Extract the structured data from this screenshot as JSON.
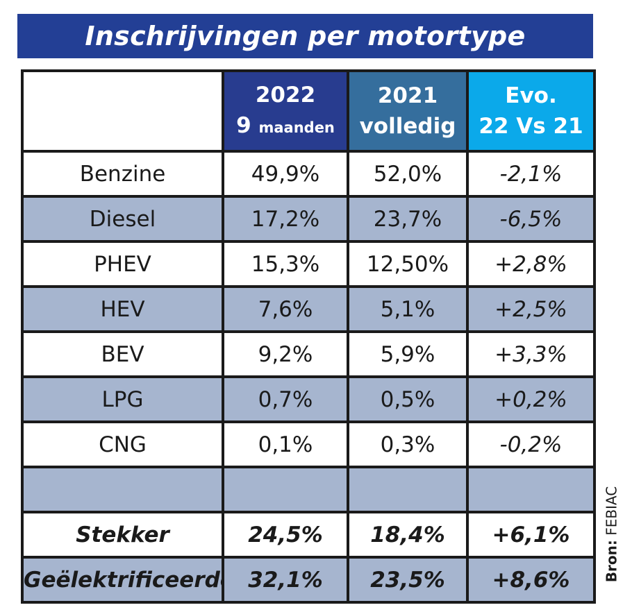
{
  "title": "Inschrijvingen per motortype",
  "source": {
    "label": "Bron:",
    "name": "FEBIAC"
  },
  "chart_data": {
    "type": "table",
    "title": "Inschrijvingen per motortype",
    "columns": [
      {
        "line1": "2022",
        "line2_num": "9",
        "line2_text": "maanden"
      },
      {
        "line1": "2021",
        "line2": "volledig"
      },
      {
        "line1": "Evo.",
        "line2": "22 Vs 21"
      }
    ],
    "rows": [
      {
        "label": "Benzine",
        "v2022": "49,9%",
        "v2021": "52,0%",
        "evo": "-2,1%"
      },
      {
        "label": "Diesel",
        "v2022": "17,2%",
        "v2021": "23,7%",
        "evo": "-6,5%"
      },
      {
        "label": "PHEV",
        "v2022": "15,3%",
        "v2021": "12,50%",
        "evo": "+2,8%"
      },
      {
        "label": "HEV",
        "v2022": "7,6%",
        "v2021": "5,1%",
        "evo": "+2,5%"
      },
      {
        "label": "BEV",
        "v2022": "9,2%",
        "v2021": "5,9%",
        "evo": "+3,3%"
      },
      {
        "label": "LPG",
        "v2022": "0,7%",
        "v2021": "0,5%",
        "evo": "+0,2%"
      },
      {
        "label": "CNG",
        "v2022": "0,1%",
        "v2021": "0,3%",
        "evo": "-0,2%"
      },
      {
        "label": "",
        "v2022": "",
        "v2021": "",
        "evo": ""
      },
      {
        "label": "Stekker",
        "v2022": "24,5%",
        "v2021": "18,4%",
        "evo": "+6,1%"
      },
      {
        "label": "Geëlektrificeerde",
        "v2022": "32,1%",
        "v2021": "23,5%",
        "evo": "+8,6%"
      }
    ],
    "values_2022": [
      49.9,
      17.2,
      15.3,
      7.6,
      9.2,
      0.7,
      0.1,
      null,
      24.5,
      32.1
    ],
    "values_2021": [
      52.0,
      23.7,
      12.5,
      5.1,
      5.9,
      0.5,
      0.3,
      null,
      18.4,
      23.5
    ],
    "values_evo": [
      -2.1,
      -6.5,
      2.8,
      2.5,
      3.3,
      0.2,
      -0.2,
      null,
      6.1,
      8.6
    ]
  },
  "colors": {
    "title_bg": "#233f95",
    "header_2022": "#283c8f",
    "header_2021": "#356e9d",
    "header_evo": "#0ba9ea",
    "row_shade": "#a6b5cf",
    "border": "#1a1a1a"
  }
}
